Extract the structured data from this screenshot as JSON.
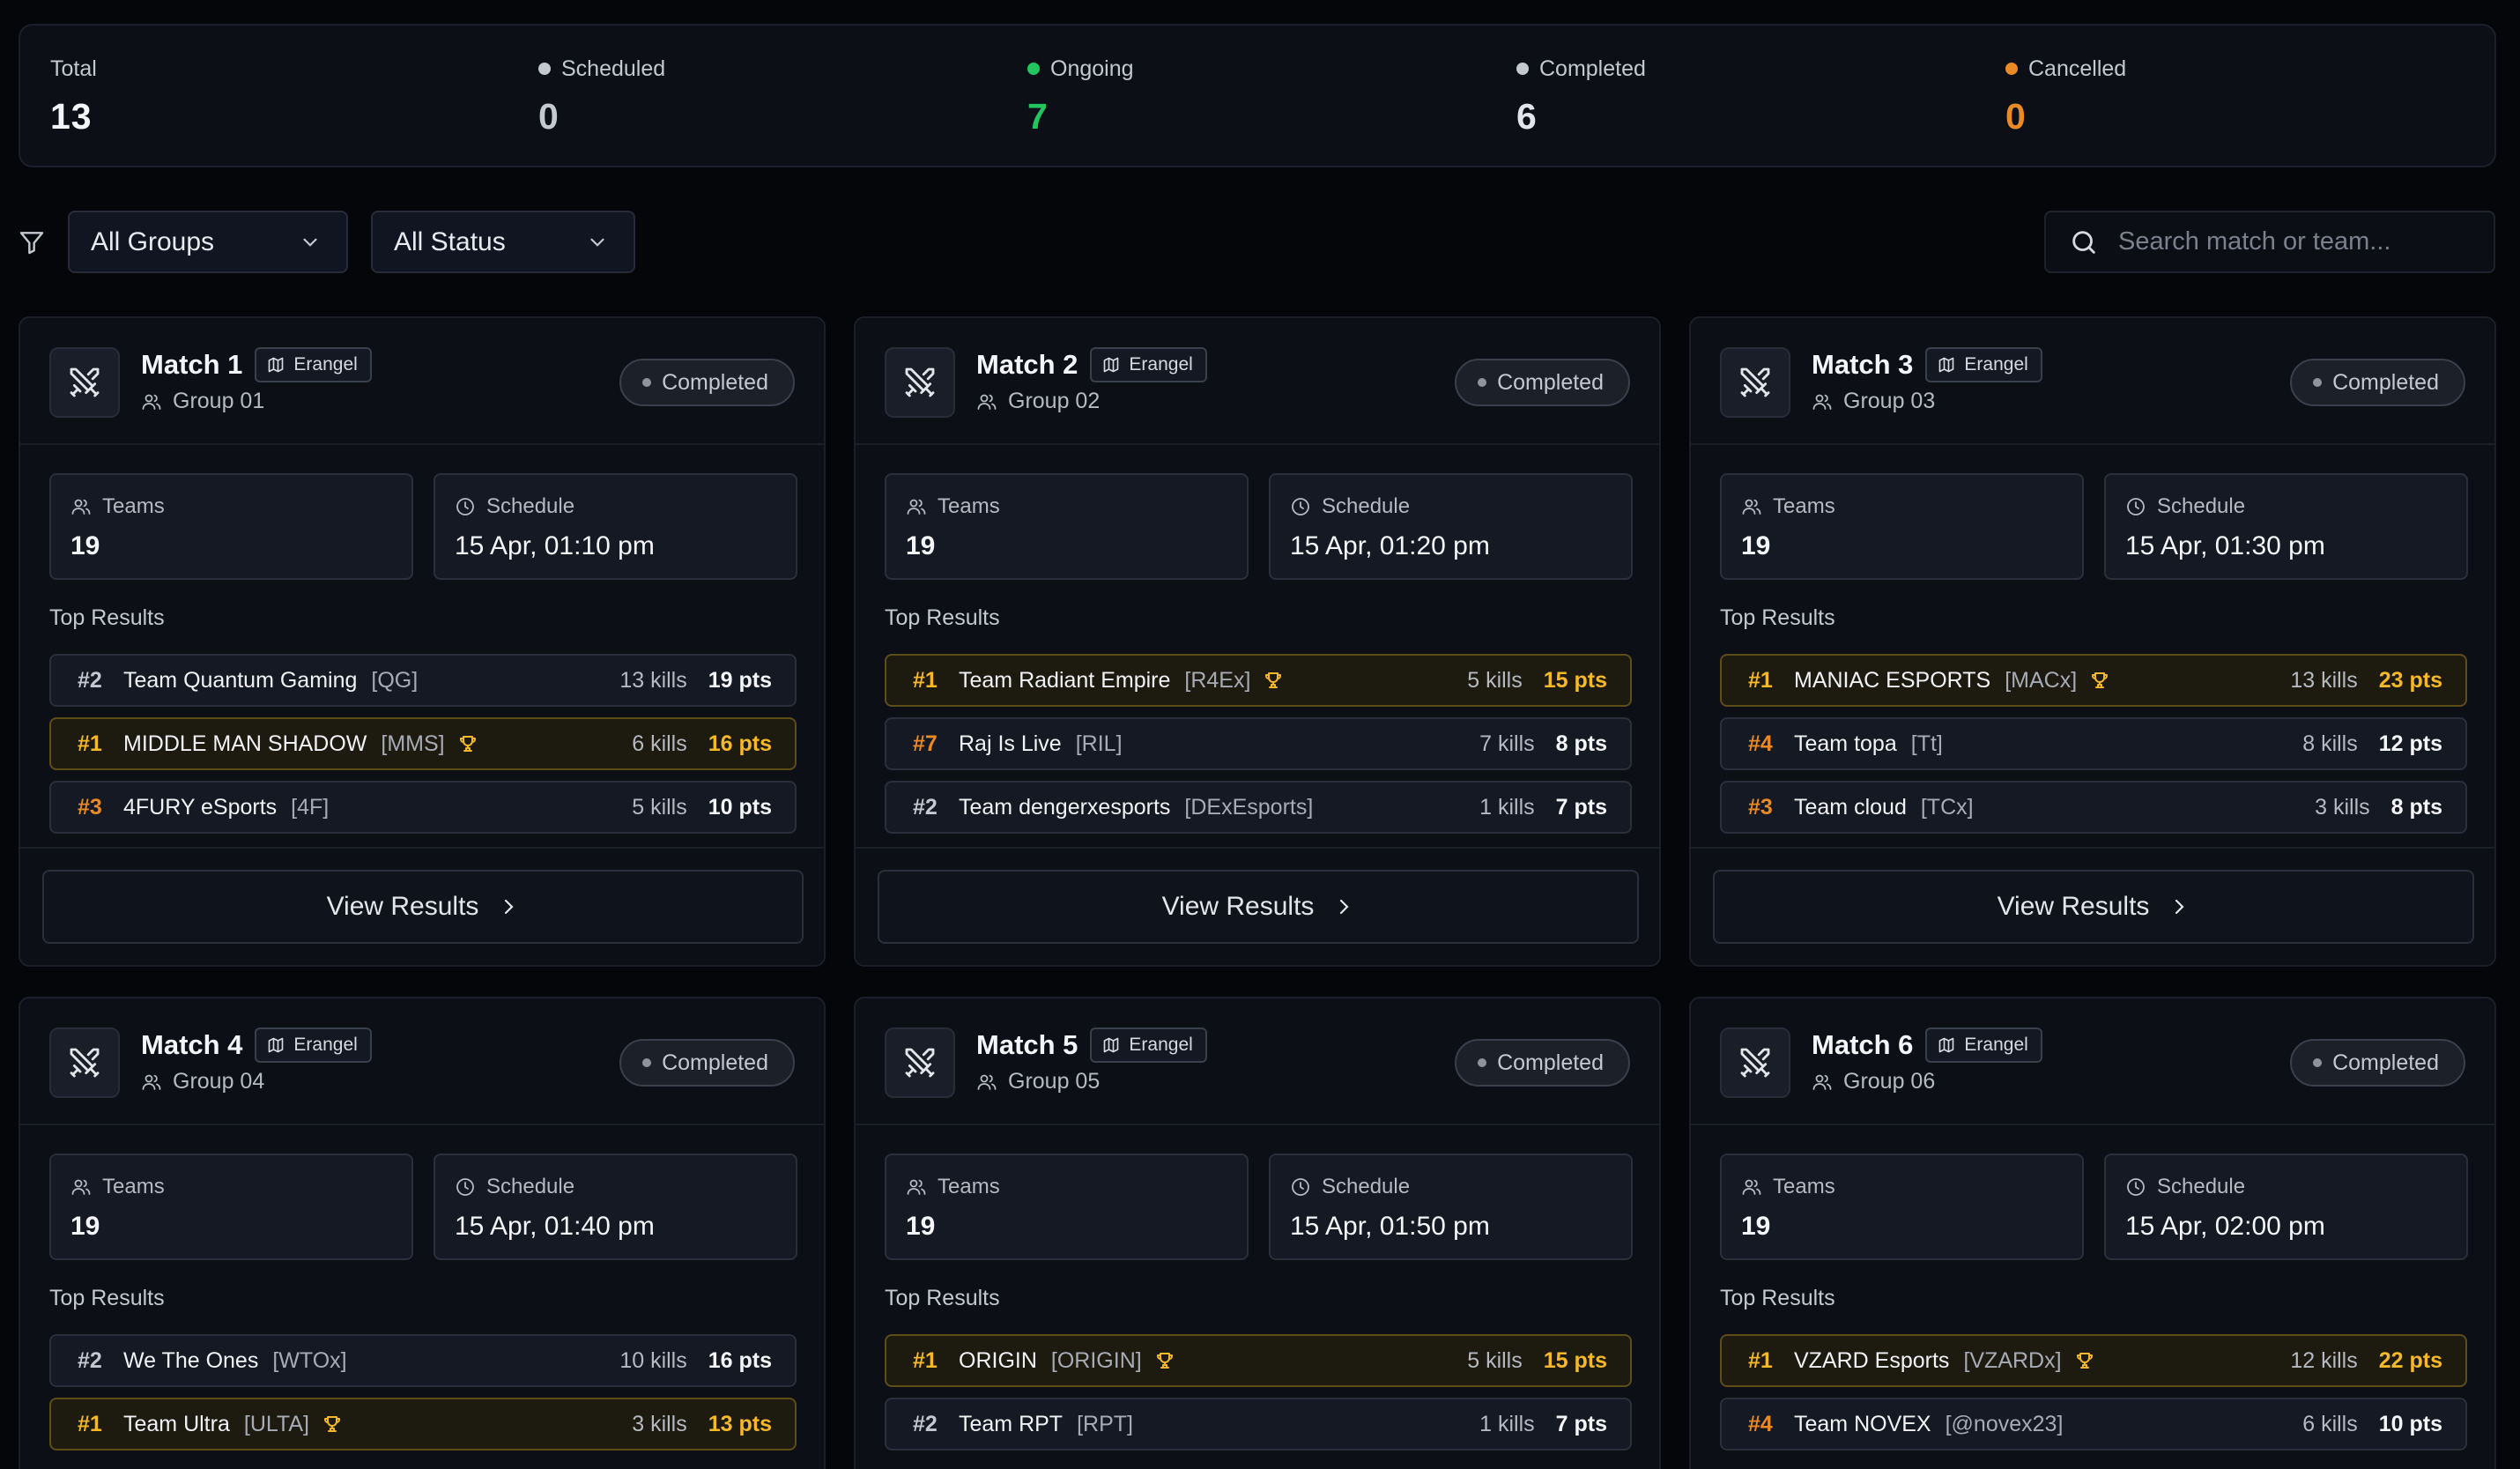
{
  "stats": [
    {
      "label": "Total",
      "value": "13",
      "dot_color": "",
      "value_color": "#f4f5f8"
    },
    {
      "label": "Scheduled",
      "value": "0",
      "dot_color": "#c4c8d0",
      "value_color": "#c4c8d0"
    },
    {
      "label": "Ongoing",
      "value": "7",
      "dot_color": "#22c55e",
      "value_color": "#22c55e"
    },
    {
      "label": "Completed",
      "value": "6",
      "dot_color": "#c4c8d0",
      "value_color": "#e3e5ea"
    },
    {
      "label": "Cancelled",
      "value": "0",
      "dot_color": "#ea8a25",
      "value_color": "#ea8a25"
    }
  ],
  "filters": {
    "group_select": "All Groups",
    "status_select": "All Status",
    "search_placeholder": "Search match or team..."
  },
  "icons": {
    "filter": "filter-icon",
    "chevron": "chevron-down-icon",
    "search": "search-icon",
    "match": "crossed-swords-icon",
    "map": "map-icon",
    "group": "users-icon",
    "schedule": "clock-icon",
    "winner": "trophy-icon",
    "view": "chevron-right-icon"
  },
  "colors": {
    "gold": "#f5b928",
    "orange": "#ea8a25",
    "green": "#22c55e"
  },
  "labels": {
    "teams": "Teams",
    "schedule": "Schedule",
    "top_results": "Top Results",
    "view_results": "View Results"
  },
  "matches": [
    {
      "title": "Match 1",
      "map": "Erangel",
      "group": "Group 01",
      "status": "Completed",
      "teams": "19",
      "schedule": "15 Apr, 01:10 pm",
      "results": [
        {
          "rank": "#2",
          "name": "Team Quantum Gaming",
          "tag": "[QG]",
          "kills": "13 kills",
          "pts": "19 pts",
          "winner": false
        },
        {
          "rank": "#1",
          "name": "MIDDLE MAN SHADOW",
          "tag": "[MMS]",
          "kills": "6 kills",
          "pts": "16 pts",
          "winner": true
        },
        {
          "rank": "#3",
          "name": "4FURY eSports",
          "tag": "[4F]",
          "kills": "5 kills",
          "pts": "10 pts",
          "winner": false
        }
      ]
    },
    {
      "title": "Match 2",
      "map": "Erangel",
      "group": "Group 02",
      "status": "Completed",
      "teams": "19",
      "schedule": "15 Apr, 01:20 pm",
      "results": [
        {
          "rank": "#1",
          "name": "Team Radiant Empire",
          "tag": "[R4Ex]",
          "kills": "5 kills",
          "pts": "15 pts",
          "winner": true
        },
        {
          "rank": "#7",
          "name": "Raj Is Live",
          "tag": "[RIL]",
          "kills": "7 kills",
          "pts": "8 pts",
          "winner": false
        },
        {
          "rank": "#2",
          "name": "Team dengerxesports",
          "tag": "[DExEsports]",
          "kills": "1 kills",
          "pts": "7 pts",
          "winner": false
        }
      ]
    },
    {
      "title": "Match 3",
      "map": "Erangel",
      "group": "Group 03",
      "status": "Completed",
      "teams": "19",
      "schedule": "15 Apr, 01:30 pm",
      "results": [
        {
          "rank": "#1",
          "name": "MANIAC ESPORTS",
          "tag": "[MACx]",
          "kills": "13 kills",
          "pts": "23 pts",
          "winner": true
        },
        {
          "rank": "#4",
          "name": "Team topa",
          "tag": "[Tt]",
          "kills": "8 kills",
          "pts": "12 pts",
          "winner": false
        },
        {
          "rank": "#3",
          "name": "Team cloud",
          "tag": "[TCx]",
          "kills": "3 kills",
          "pts": "8 pts",
          "winner": false
        }
      ]
    },
    {
      "title": "Match 4",
      "map": "Erangel",
      "group": "Group 04",
      "status": "Completed",
      "teams": "19",
      "schedule": "15 Apr, 01:40 pm",
      "results": [
        {
          "rank": "#2",
          "name": "We The Ones",
          "tag": "[WTOx]",
          "kills": "10 kills",
          "pts": "16 pts",
          "winner": false
        },
        {
          "rank": "#1",
          "name": "Team Ultra",
          "tag": "[ULTA]",
          "kills": "3 kills",
          "pts": "13 pts",
          "winner": true
        }
      ]
    },
    {
      "title": "Match 5",
      "map": "Erangel",
      "group": "Group 05",
      "status": "Completed",
      "teams": "19",
      "schedule": "15 Apr, 01:50 pm",
      "results": [
        {
          "rank": "#1",
          "name": "ORIGIN",
          "tag": "[ORIGIN]",
          "kills": "5 kills",
          "pts": "15 pts",
          "winner": true
        },
        {
          "rank": "#2",
          "name": "Team RPT",
          "tag": "[RPT]",
          "kills": "1 kills",
          "pts": "7 pts",
          "winner": false
        }
      ]
    },
    {
      "title": "Match 6",
      "map": "Erangel",
      "group": "Group 06",
      "status": "Completed",
      "teams": "19",
      "schedule": "15 Apr, 02:00 pm",
      "results": [
        {
          "rank": "#1",
          "name": "VZARD Esports",
          "tag": "[VZARDx]",
          "kills": "12 kills",
          "pts": "22 pts",
          "winner": true
        },
        {
          "rank": "#4",
          "name": "Team NOVEX",
          "tag": "[@novex23]",
          "kills": "6 kills",
          "pts": "10 pts",
          "winner": false
        }
      ]
    }
  ]
}
